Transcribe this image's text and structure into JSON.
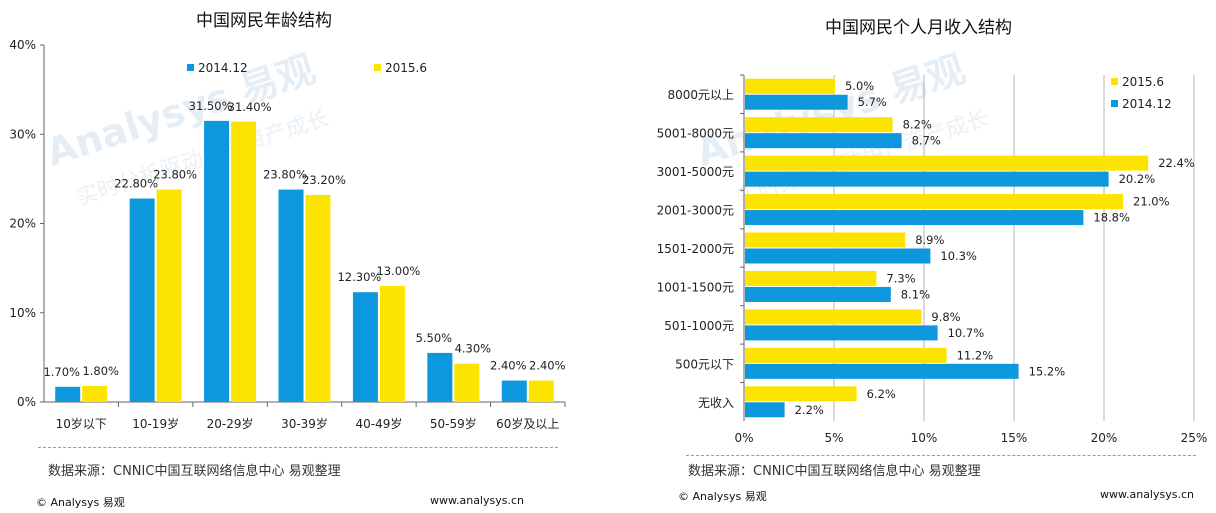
{
  "left": {
    "title": "中国网民年龄结构",
    "source": "数据来源：CNNIC中国互联网络信息中心 易观整理",
    "copyright": "© Analysys 易观",
    "url": "www.analysys.cn",
    "chart_data": {
      "type": "bar",
      "title": "中国网民年龄结构",
      "categories": [
        "10岁以下",
        "10-19岁",
        "20-29岁",
        "30-39岁",
        "40-49岁",
        "50-59岁",
        "60岁及以上"
      ],
      "series": [
        {
          "name": "2014.12",
          "values": [
            1.7,
            22.8,
            31.5,
            23.8,
            12.3,
            5.5,
            2.4
          ],
          "labels": [
            "1.70%",
            "22.80%",
            "31.50%",
            "23.80%",
            "12.30%",
            "5.50%",
            "2.40%"
          ]
        },
        {
          "name": "2015.6",
          "values": [
            1.8,
            23.8,
            31.4,
            23.2,
            13.0,
            4.3,
            2.4
          ],
          "labels": [
            "1.80%",
            "23.80%",
            "31.40%",
            "23.20%",
            "13.00%",
            "4.30%",
            "2.40%"
          ]
        }
      ],
      "yticks": [
        "0%",
        "10%",
        "20%",
        "30%",
        "40%"
      ],
      "ylim": [
        0,
        40
      ],
      "legend": "top-center",
      "grid": false
    }
  },
  "right": {
    "title": "中国网民个人月收入结构",
    "source": "数据来源：CNNIC中国互联网络信息中心 易观整理",
    "copyright": "© Analysys 易观",
    "url": "www.analysys.cn",
    "chart_data": {
      "type": "bar",
      "orientation": "horizontal",
      "title": "中国网民个人月收入结构",
      "categories": [
        "8000元以上",
        "5001-8000元",
        "3001-5000元",
        "2001-3000元",
        "1501-2000元",
        "1001-1500元",
        "501-1000元",
        "500元以下",
        "无收入"
      ],
      "series": [
        {
          "name": "2015.6",
          "values": [
            5.0,
            8.2,
            22.4,
            21.0,
            8.9,
            7.3,
            9.8,
            11.2,
            6.2
          ],
          "labels": [
            "5.0%",
            "8.2%",
            "22.4%",
            "21.0%",
            "8.9%",
            "7.3%",
            "9.8%",
            "11.2%",
            "6.2%"
          ]
        },
        {
          "name": "2014.12",
          "values": [
            5.7,
            8.7,
            20.2,
            18.8,
            10.3,
            8.1,
            10.7,
            15.2,
            2.2
          ],
          "labels": [
            "5.7%",
            "8.7%",
            "20.2%",
            "18.8%",
            "10.3%",
            "8.1%",
            "10.7%",
            "15.2%",
            "2.2%"
          ]
        }
      ],
      "xticks": [
        "0%",
        "5%",
        "10%",
        "15%",
        "20%",
        "25%"
      ],
      "xlim": [
        0,
        25
      ],
      "legend": "top-right",
      "grid": true
    }
  },
  "colors": {
    "series_2014": "#0d97dc",
    "series_2015": "#fde400",
    "axis": "#666666",
    "grid": "#aaaaaa"
  },
  "watermark": {
    "brand": "Analysys 易观",
    "slogan": "实时分析驱动用户资产成长"
  }
}
